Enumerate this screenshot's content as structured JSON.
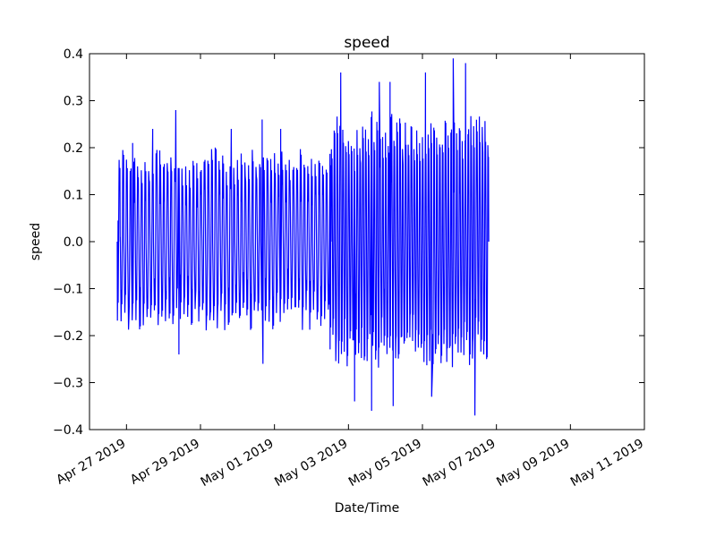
{
  "chart_data": {
    "type": "line",
    "title": "speed",
    "xlabel": "Date/Time",
    "ylabel": "speed",
    "xlim": [
      "2019-04-26",
      "2019-05-11"
    ],
    "ylim": [
      -0.4,
      0.4
    ],
    "x_tick_labels": [
      "Apr 27 2019",
      "Apr 29 2019",
      "May 01 2019",
      "May 03 2019",
      "May 05 2019",
      "May 07 2019",
      "May 09 2019",
      "May 11 2019"
    ],
    "x_ticks": [
      "2019-04-27",
      "2019-04-29",
      "2019-05-01",
      "2019-05-03",
      "2019-05-05",
      "2019-05-07",
      "2019-05-09",
      "2019-05-11"
    ],
    "y_ticks": [
      -0.4,
      -0.3,
      -0.2,
      -0.1,
      0.0,
      0.1,
      0.2,
      0.3,
      0.4
    ],
    "y_tick_labels": [
      "−0.4",
      "−0.3",
      "−0.2",
      "−0.1",
      "0.0",
      "0.1",
      "0.2",
      "0.3",
      "0.4"
    ],
    "grid": false,
    "series": [
      {
        "color": "#0000ff",
        "x_range": [
          "2019-04-26 18:00",
          "2019-05-06 18:00"
        ],
        "segments": [
          {
            "start": "2019-04-26 18:00",
            "end": "2019-05-02 12:00",
            "cycles_per_day": 10,
            "peak": 0.18,
            "trough": -0.17
          },
          {
            "start": "2019-05-02 12:00",
            "end": "2019-05-06 18:00",
            "cycles_per_day": 13,
            "peak": 0.24,
            "trough": -0.24
          }
        ],
        "spikes": [
          {
            "x": "2019-04-27 04:00",
            "y": 0.21
          },
          {
            "x": "2019-04-27 17:00",
            "y": 0.24
          },
          {
            "x": "2019-04-28 08:00",
            "y": 0.28
          },
          {
            "x": "2019-04-28 10:00",
            "y": -0.24
          },
          {
            "x": "2019-04-29 20:00",
            "y": 0.24
          },
          {
            "x": "2019-04-30 16:00",
            "y": 0.26
          },
          {
            "x": "2019-04-30 16:30",
            "y": -0.26
          },
          {
            "x": "2019-05-01 04:00",
            "y": 0.24
          },
          {
            "x": "2019-05-02 19:00",
            "y": 0.36
          },
          {
            "x": "2019-05-03 04:00",
            "y": -0.34
          },
          {
            "x": "2019-05-03 15:00",
            "y": -0.36
          },
          {
            "x": "2019-05-03 20:00",
            "y": 0.34
          },
          {
            "x": "2019-05-04 03:00",
            "y": 0.34
          },
          {
            "x": "2019-05-04 05:00",
            "y": -0.35
          },
          {
            "x": "2019-05-05 02:00",
            "y": 0.36
          },
          {
            "x": "2019-05-05 06:00",
            "y": -0.33
          },
          {
            "x": "2019-05-05 20:00",
            "y": 0.39
          },
          {
            "x": "2019-05-06 04:00",
            "y": 0.38
          },
          {
            "x": "2019-05-06 10:00",
            "y": -0.37
          }
        ]
      }
    ]
  }
}
